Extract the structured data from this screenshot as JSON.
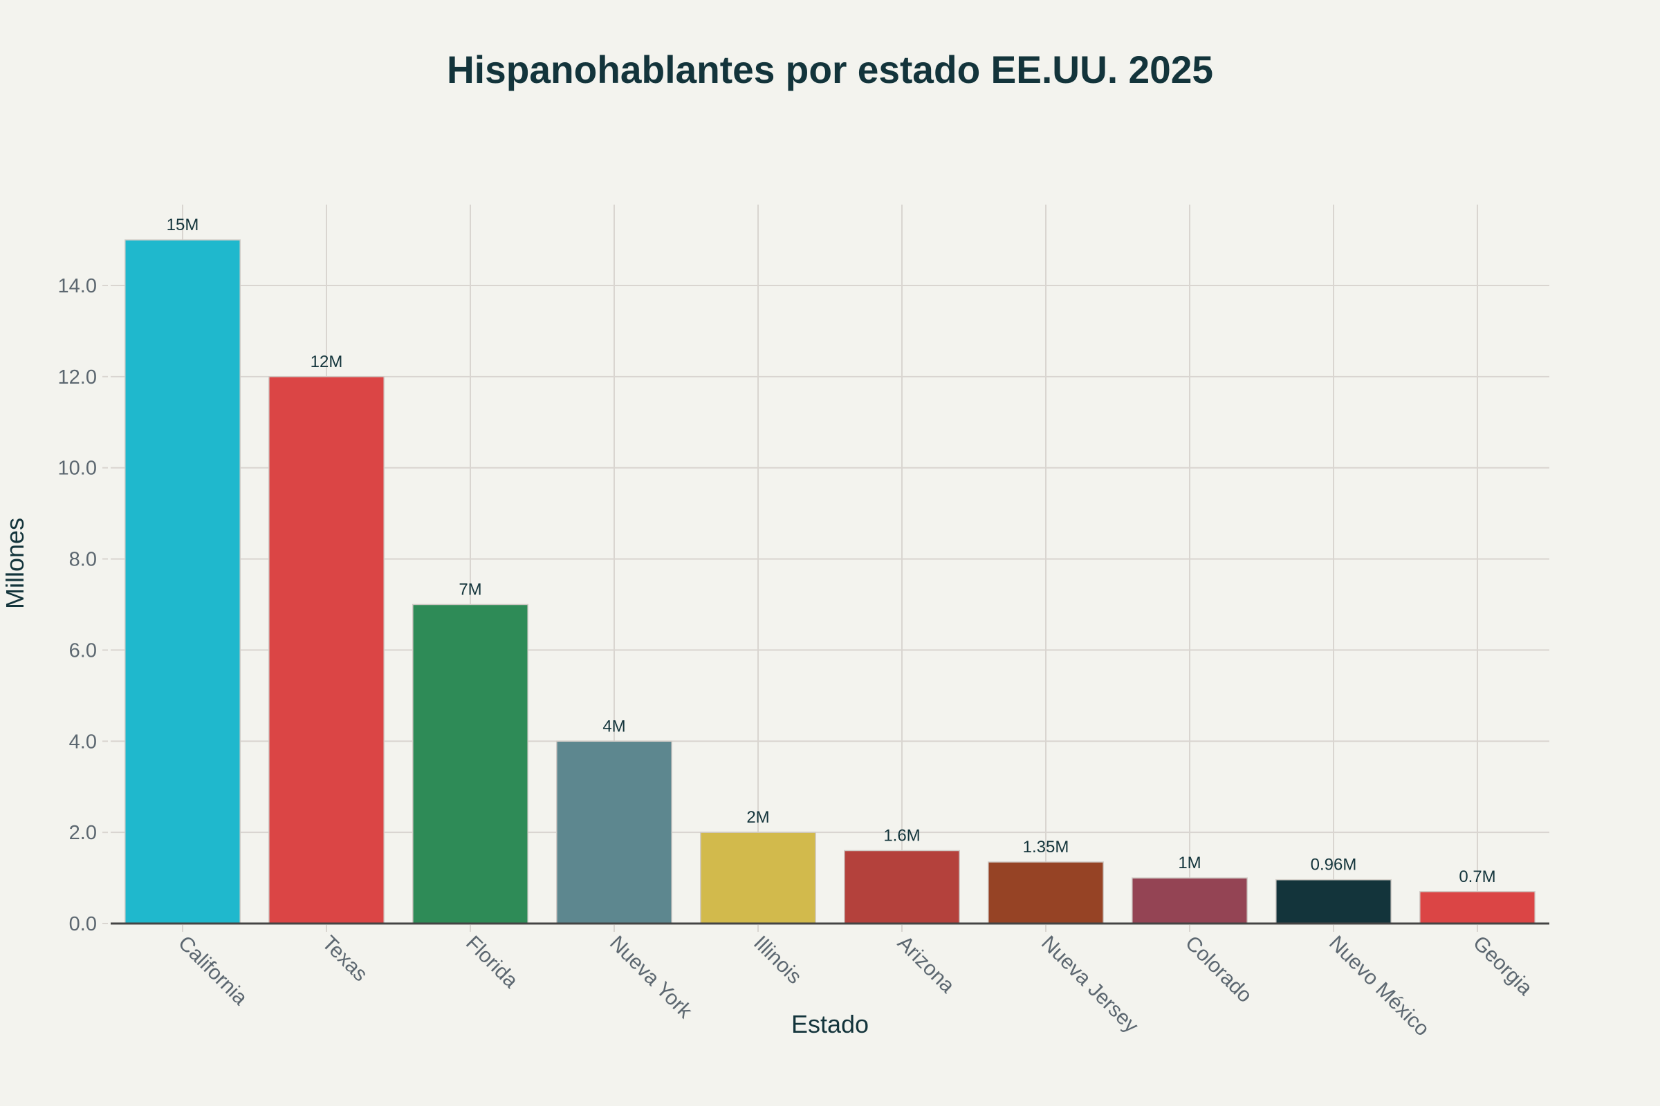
{
  "chart_data": {
    "type": "bar",
    "title": "Hispanohablantes por estado EE.UU. 2025",
    "xlabel": "Estado",
    "ylabel": "Millones",
    "ylim": [
      0,
      15.8
    ],
    "yticks": [
      0,
      2,
      4,
      6,
      8,
      10,
      12,
      14
    ],
    "ytick_labels": [
      "0.0",
      "2.0",
      "4.0",
      "6.0",
      "8.0",
      "10.0",
      "12.0",
      "14.0"
    ],
    "grid": true,
    "legend": "none",
    "categories": [
      "California",
      "Texas",
      "Florida",
      "Nueva York",
      "Illinois",
      "Arizona",
      "Nueva Jersey",
      "Colorado",
      "Nuevo México",
      "Georgia"
    ],
    "values": [
      15,
      12,
      7,
      4,
      2,
      1.6,
      1.35,
      1,
      0.96,
      0.7
    ],
    "data_labels": [
      "15M",
      "12M",
      "7M",
      "4M",
      "2M",
      "1.6M",
      "1.35M",
      "1M",
      "0.96M",
      "0.7M"
    ],
    "colors": [
      "#1FB8CD",
      "#DB4545",
      "#2E8B57",
      "#5D878F",
      "#D2BA4C",
      "#B4413C",
      "#964325",
      "#944454",
      "#13343B",
      "#DB4545"
    ]
  }
}
